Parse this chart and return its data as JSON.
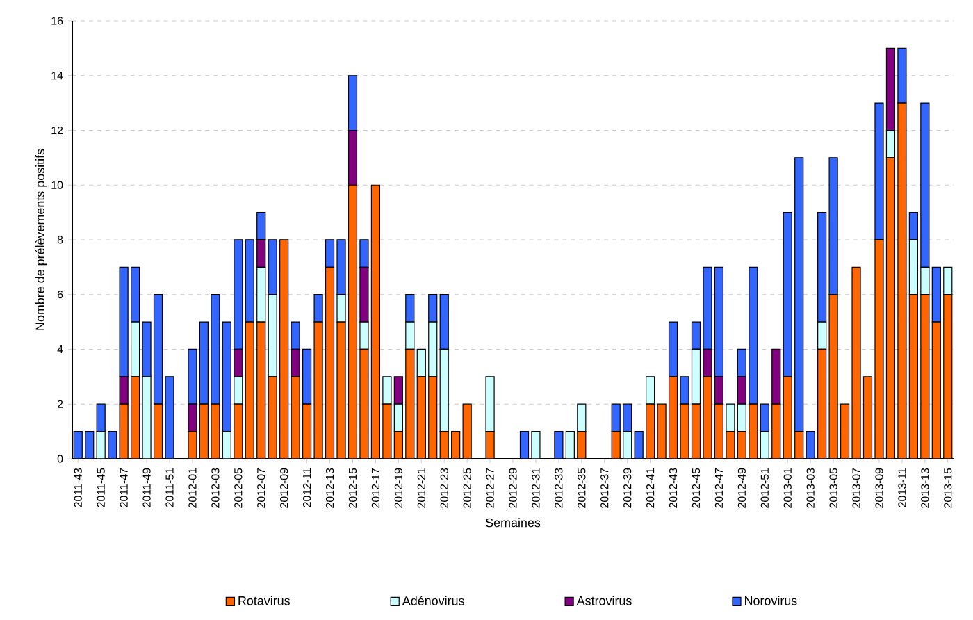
{
  "chart_data": {
    "type": "bar",
    "stacked": true,
    "xlabel": "Semaines",
    "ylabel": "Nombre de prélèvements positifs",
    "categories": [
      "2011-43",
      null,
      "2011-45",
      null,
      "2011-47",
      null,
      "2011-49",
      null,
      "2011-51",
      null,
      "2012-01",
      null,
      "2012-03",
      null,
      "2012-05",
      null,
      "2012-07",
      null,
      "2012-09",
      null,
      "2012-11",
      null,
      "2012-13",
      null,
      "2012-15",
      null,
      "2012-17",
      null,
      "2012-19",
      null,
      "2012-21",
      null,
      "2012-23",
      null,
      "2012-25",
      null,
      "2012-27",
      null,
      "2012-29",
      null,
      "2012-31",
      null,
      "2012-33",
      null,
      "2012-35",
      null,
      "2012-37",
      null,
      "2012-39",
      null,
      "2012-41",
      null,
      "2012-43",
      null,
      "2012-45",
      null,
      "2012-47",
      null,
      "2012-49",
      null,
      "2012-51",
      null,
      "2013-01",
      null,
      "2013-03",
      null,
      "2013-05",
      null,
      "2013-07",
      null,
      "2013-09",
      null,
      "2013-11",
      null,
      "2013-13",
      null,
      "2013-15"
    ],
    "series": [
      {
        "name": "Rotavirus",
        "color": "#ff6600",
        "values": [
          0,
          0,
          0,
          0,
          2,
          3,
          0,
          2,
          0,
          0,
          1,
          2,
          2,
          0,
          2,
          5,
          5,
          3,
          8,
          3,
          2,
          5,
          7,
          5,
          10,
          4,
          10,
          2,
          1,
          4,
          3,
          3,
          1,
          1,
          2,
          0,
          1,
          0,
          0,
          0,
          0,
          0,
          0,
          0,
          1,
          0,
          0,
          1,
          0,
          0,
          2,
          2,
          3,
          2,
          2,
          3,
          2,
          1,
          1,
          2,
          0,
          2,
          3,
          1,
          0,
          4,
          6,
          2,
          7,
          3,
          8,
          11,
          13,
          6,
          6,
          5,
          6
        ]
      },
      {
        "name": "Adénovirus",
        "color": "#ccffff",
        "values": [
          0,
          0,
          1,
          0,
          0,
          2,
          3,
          0,
          0,
          0,
          0,
          0,
          0,
          1,
          1,
          0,
          2,
          3,
          0,
          0,
          0,
          0,
          0,
          1,
          0,
          1,
          0,
          1,
          1,
          1,
          1,
          2,
          3,
          0,
          0,
          0,
          2,
          0,
          0,
          0,
          1,
          0,
          0,
          1,
          1,
          0,
          0,
          0,
          1,
          0,
          1,
          0,
          0,
          0,
          2,
          0,
          0,
          1,
          1,
          0,
          1,
          0,
          0,
          0,
          0,
          1,
          0,
          0,
          0,
          0,
          0,
          1,
          0,
          2,
          1,
          0,
          1
        ]
      },
      {
        "name": "Astrovirus",
        "color": "#800080",
        "values": [
          0,
          0,
          0,
          0,
          1,
          0,
          0,
          0,
          0,
          0,
          1,
          0,
          0,
          0,
          1,
          0,
          1,
          0,
          0,
          1,
          0,
          0,
          0,
          0,
          2,
          2,
          0,
          0,
          1,
          0,
          0,
          0,
          0,
          0,
          0,
          0,
          0,
          0,
          0,
          0,
          0,
          0,
          0,
          0,
          0,
          0,
          0,
          0,
          0,
          0,
          0,
          0,
          0,
          0,
          0,
          1,
          1,
          0,
          1,
          0,
          0,
          2,
          0,
          0,
          0,
          0,
          0,
          0,
          0,
          0,
          0,
          3,
          0,
          0,
          0,
          0,
          0
        ]
      },
      {
        "name": "Norovirus",
        "color": "#3366ff",
        "values": [
          1,
          1,
          1,
          1,
          4,
          2,
          2,
          4,
          3,
          0,
          2,
          3,
          4,
          4,
          4,
          3,
          1,
          2,
          0,
          1,
          2,
          1,
          1,
          2,
          2,
          1,
          0,
          0,
          0,
          1,
          0,
          1,
          2,
          0,
          0,
          0,
          0,
          0,
          0,
          1,
          0,
          0,
          1,
          0,
          0,
          0,
          0,
          1,
          1,
          1,
          0,
          0,
          2,
          1,
          1,
          3,
          4,
          0,
          1,
          5,
          1,
          0,
          6,
          10,
          1,
          4,
          5,
          0,
          0,
          0,
          5,
          0,
          2,
          1,
          6,
          2,
          0
        ]
      }
    ],
    "ylim": [
      0,
      16
    ],
    "yticks": [
      0,
      2,
      4,
      6,
      8,
      10,
      12,
      14,
      16
    ],
    "grid": "y",
    "legend": "bottom"
  }
}
